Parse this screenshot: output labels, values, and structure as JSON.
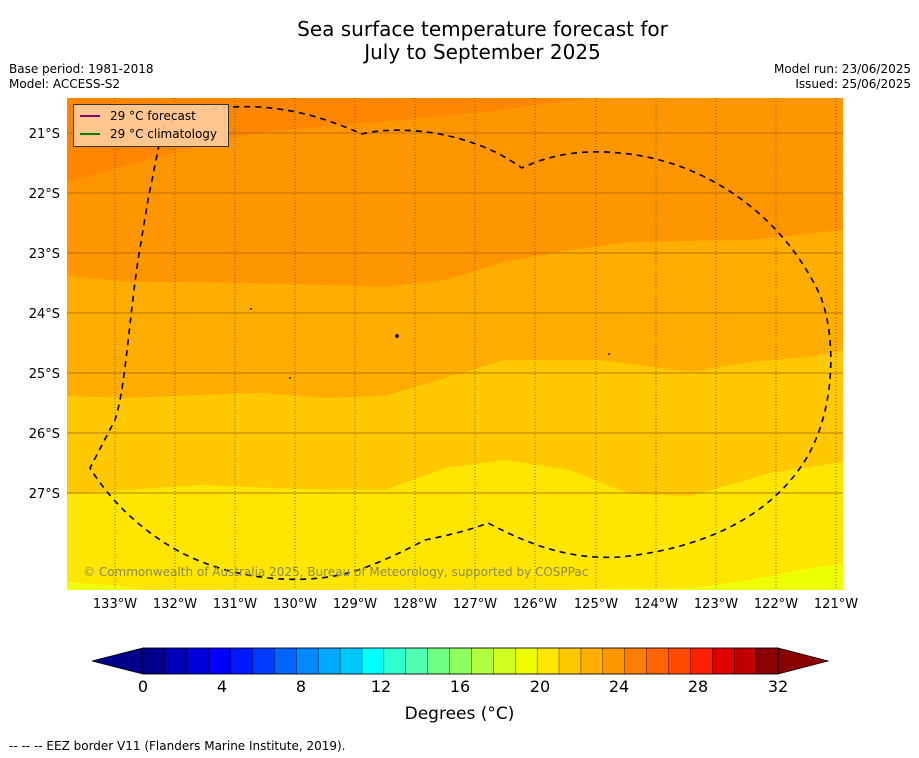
{
  "header": {
    "title_line1": "Sea surface temperature forecast for",
    "title_line2": "July to September 2025",
    "base_period": "Base period: 1981-2018",
    "model": "Model: ACCESS-S2",
    "model_run": "Model run: 23/06/2025",
    "issued": "Issued: 25/06/2025"
  },
  "map": {
    "lat_labels": [
      "21°S",
      "22°S",
      "23°S",
      "24°S",
      "25°S",
      "26°S",
      "27°S"
    ],
    "lon_labels": [
      "133°W",
      "132°W",
      "131°W",
      "130°W",
      "129°W",
      "128°W",
      "127°W",
      "126°W",
      "125°W",
      "124°W",
      "123°W",
      "122°W",
      "121°W"
    ],
    "credit": "© Commonwealth of Australia 2025, Bureau of Meteorology, supported by COSPPac",
    "eez_boundary_style": "dashed"
  },
  "legend": {
    "forecast_label": "29 °C  forecast",
    "forecast_color": "#800080",
    "climatology_label": "29 °C  climatology",
    "climatology_color": "#008000"
  },
  "colorbar": {
    "tick_labels": [
      "0",
      "4",
      "8",
      "12",
      "16",
      "20",
      "24",
      "28",
      "32"
    ],
    "label": "Degrees (°C)",
    "colors": [
      "#00008b",
      "#0000b8",
      "#0000dd",
      "#0000ff",
      "#0018ff",
      "#003cff",
      "#0064ff",
      "#0088ff",
      "#00a8ff",
      "#00c8ff",
      "#00ffff",
      "#30ffd0",
      "#50ffb0",
      "#70ff80",
      "#90ff60",
      "#b0ff40",
      "#d0ff20",
      "#f0ff00",
      "#ffe600",
      "#ffc800",
      "#ffae00",
      "#ff9600",
      "#ff7e00",
      "#ff6400",
      "#ff4a00",
      "#ff2000",
      "#e00000",
      "#c00000",
      "#8b0000"
    ],
    "low_extend_color": "#00008b",
    "high_extend_color": "#8b0000"
  },
  "footer": {
    "eez_note": "--  --  -- EEZ border V11 (Flanders Marine Institute, 2019)."
  }
}
